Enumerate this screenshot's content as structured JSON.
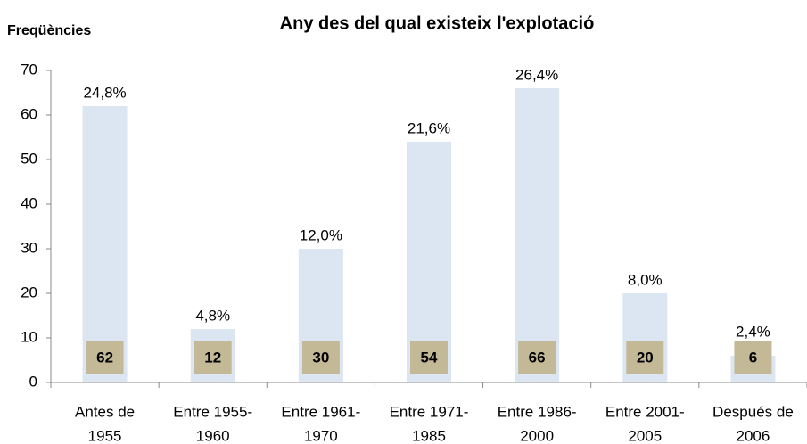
{
  "chart_data": {
    "type": "bar",
    "title": "Any des del qual existeix l'explotació",
    "y_label": "Freqüències",
    "categories": [
      [
        "Antes de",
        "1955"
      ],
      [
        "Entre 1955-",
        "1960"
      ],
      [
        "Entre 1961-",
        "1970"
      ],
      [
        "Entre 1971-",
        "1985"
      ],
      [
        "Entre 1986-",
        "2000"
      ],
      [
        "Entre 2001-",
        "2005"
      ],
      [
        "Después de",
        "2006"
      ]
    ],
    "values": [
      62,
      12,
      30,
      54,
      66,
      20,
      6
    ],
    "shares": [
      24.8,
      4.8,
      12.0,
      21.6,
      26.4,
      8.0,
      2.4
    ],
    "share_labels": [
      "24,8%",
      "4,8%",
      "12,0%",
      "21,6%",
      "26,4%",
      "8,0%",
      "2,4%"
    ],
    "color": "#dce6f2",
    "label_box_color": "#c4b996",
    "ylim": [
      0,
      70
    ],
    "yticks": [
      0,
      10,
      20,
      30,
      40,
      50,
      60,
      70
    ],
    "grid": false
  }
}
